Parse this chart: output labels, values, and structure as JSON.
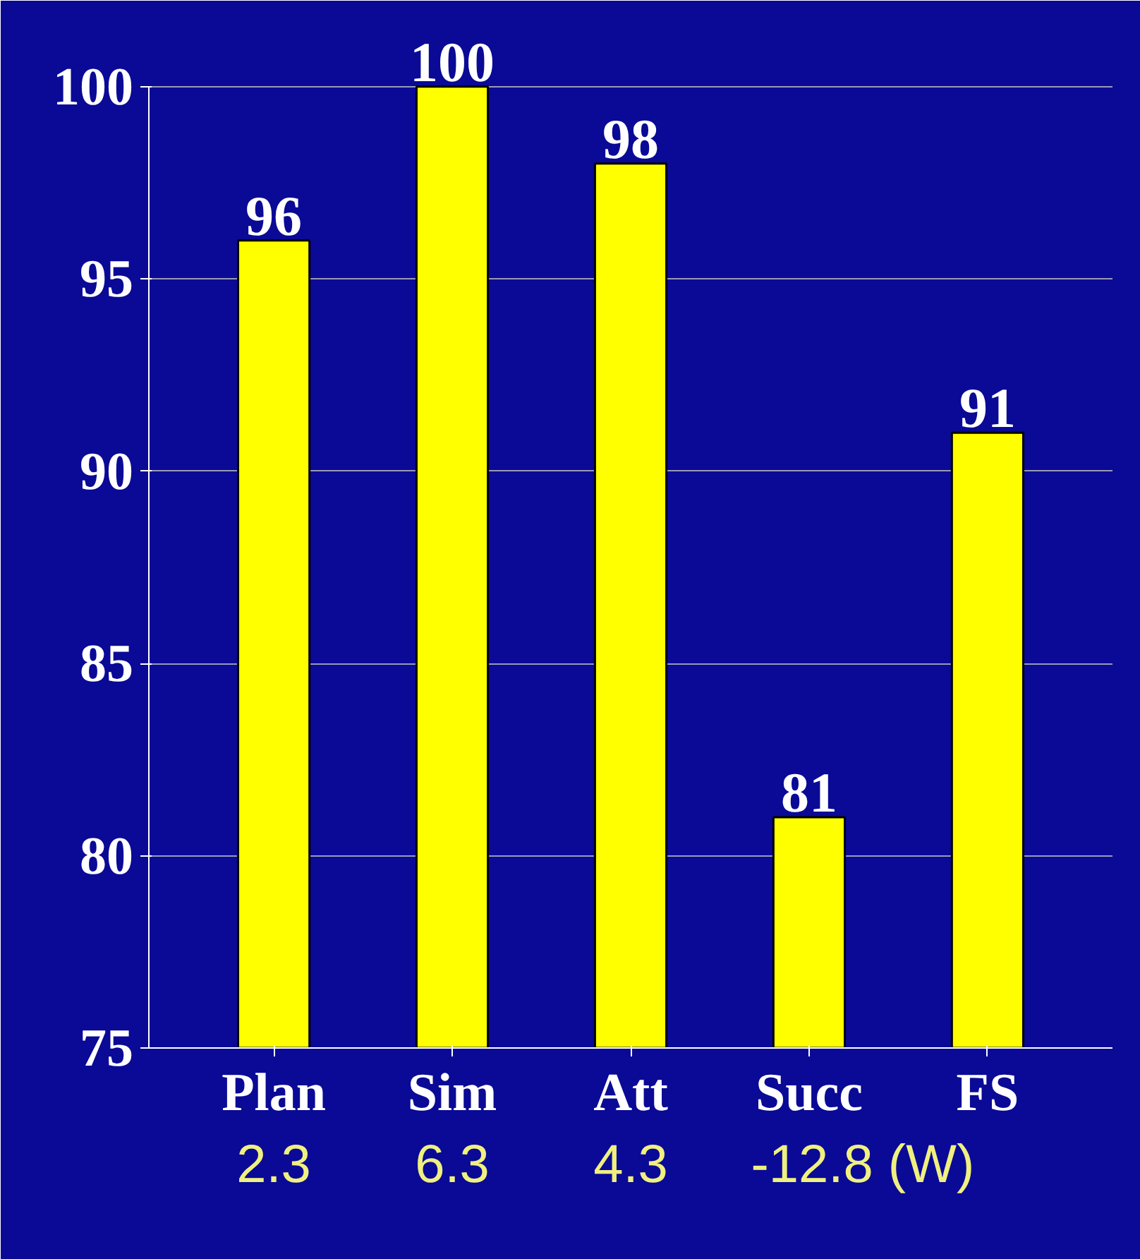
{
  "chart_data": {
    "type": "bar",
    "categories": [
      "Plan",
      "Sim",
      "Att",
      "Succ",
      "FS"
    ],
    "values": [
      96,
      100,
      98,
      81,
      91
    ],
    "color": "#ffff00",
    "ylim": [
      75,
      100
    ],
    "yticks": [
      75,
      80,
      85,
      90,
      95,
      100
    ],
    "grid": "y",
    "data_labels": true,
    "annotations": [
      "2.3",
      "6.3",
      "4.3",
      "-12.8 (W)"
    ]
  }
}
